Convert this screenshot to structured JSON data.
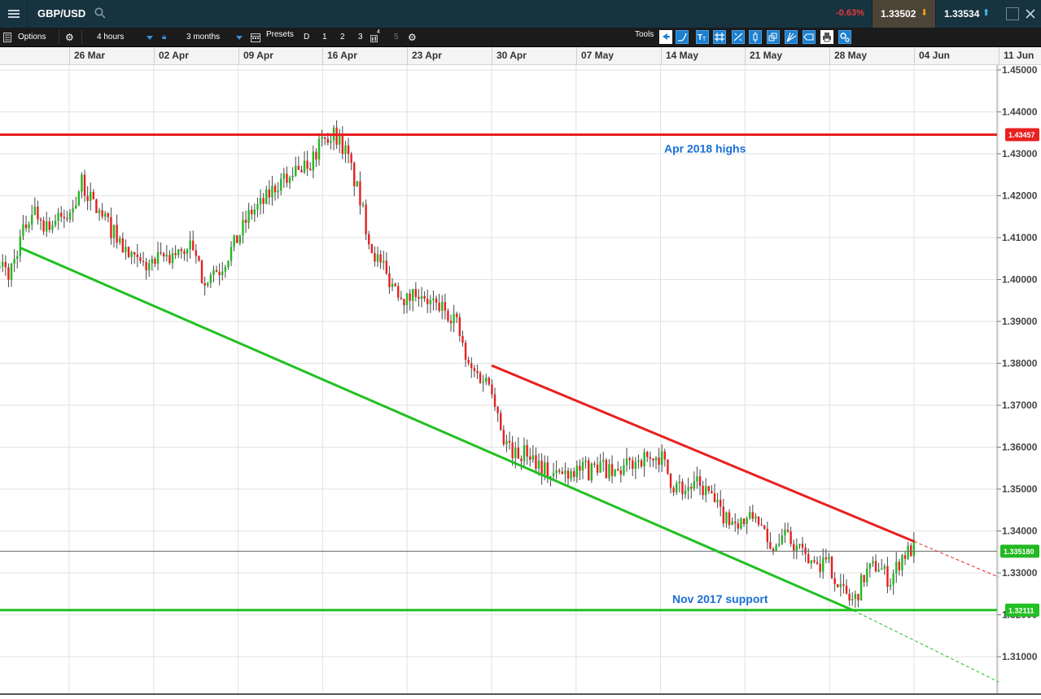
{
  "topbar": {
    "symbol": "GBP/USD",
    "change": "-0.63%",
    "sell_price": "1.33502",
    "buy_price": "1.33534",
    "icons": [
      "menu-icon",
      "search-icon",
      "down-arrow-icon",
      "up-arrow-icon",
      "maximize-icon",
      "close-icon"
    ]
  },
  "toolbar": {
    "options_label": "Options",
    "interval": "4 hours",
    "range": "3 months",
    "presets_label": "Presets",
    "preset_buttons": [
      "D",
      "1",
      "2",
      "3",
      "4",
      "5"
    ],
    "tools_label": "Tools",
    "icons": [
      "options-icon",
      "gear-icon",
      "lock-icon",
      "calendar-icon",
      "settings-icon",
      "cursor-icon",
      "line-tool-icon",
      "text-tool-icon",
      "grid-tool-icon",
      "fib-tool-icon",
      "candle-tool-icon",
      "layers-tool-icon",
      "fan-tool-icon",
      "shape-tool-icon",
      "print-icon",
      "settings-tool-icon"
    ]
  },
  "chart_data": {
    "type": "candlestick",
    "symbol": "GBP/USD",
    "interval": "4 hours",
    "x_labels": [
      "26 Mar",
      "02 Apr",
      "09 Apr",
      "16 Apr",
      "23 Apr",
      "30 Apr",
      "07 May",
      "14 May",
      "21 May",
      "28 May",
      "04 Jun",
      "11 Jun"
    ],
    "y_ticks": [
      "1.45000",
      "1.44000",
      "1.43000",
      "1.42000",
      "1.41000",
      "1.40000",
      "1.39000",
      "1.38000",
      "1.37000",
      "1.36000",
      "1.35000",
      "1.34000",
      "1.33000",
      "1.32000",
      "1.31000"
    ],
    "ylim": [
      1.3,
      1.45
    ],
    "current_price": 1.33518,
    "current_price_label": "1.335180",
    "horizontal_levels": [
      {
        "value": 1.43457,
        "label": "1.43457",
        "annotation": "Apr 2018 highs",
        "color": "#e82020"
      },
      {
        "value": 1.32111,
        "label": "1.32111",
        "annotation": "Nov 2017 support",
        "color": "#22c022"
      }
    ],
    "trendlines": [
      {
        "name": "resistance",
        "color": "#e82020",
        "points": [
          [
            "30 Apr",
            1.3795
          ],
          [
            "04 Jun",
            1.3375
          ]
        ],
        "extension": [
          "11 Jun",
          1.329
        ]
      },
      {
        "name": "support",
        "color": "#22c022",
        "points": [
          [
            "22 Mar",
            1.4075
          ],
          [
            "30 May",
            1.321
          ]
        ],
        "extension": [
          "11 Jun",
          1.304
        ]
      }
    ],
    "close_path": [
      [
        "20 Mar",
        1.405
      ],
      [
        "21 Mar",
        1.401
      ],
      [
        "22 Mar",
        1.41
      ],
      [
        "23 Mar",
        1.417
      ],
      [
        "24 Mar",
        1.413
      ],
      [
        "26 Mar",
        1.415
      ],
      [
        "27 Mar",
        1.423
      ],
      [
        "28 Mar",
        1.418
      ],
      [
        "29 Mar",
        1.414
      ],
      [
        "30 Mar",
        1.41
      ],
      [
        "31 Mar",
        1.405
      ],
      [
        "01 Apr",
        1.403
      ],
      [
        "02 Apr",
        1.404
      ],
      [
        "03 Apr",
        1.405
      ],
      [
        "04 Apr",
        1.406
      ],
      [
        "05 Apr",
        1.408
      ],
      [
        "06 Apr",
        1.401
      ],
      [
        "07 Apr",
        1.4
      ],
      [
        "09 Apr",
        1.41
      ],
      [
        "10 Apr",
        1.416
      ],
      [
        "11 Apr",
        1.418
      ],
      [
        "12 Apr",
        1.422
      ],
      [
        "13 Apr",
        1.424
      ],
      [
        "14 Apr",
        1.427
      ],
      [
        "15 Apr",
        1.428
      ],
      [
        "16 Apr",
        1.433
      ],
      [
        "17 Apr",
        1.435
      ],
      [
        "18 Apr",
        1.43
      ],
      [
        "19 Apr",
        1.42
      ],
      [
        "20 Apr",
        1.408
      ],
      [
        "21 Apr",
        1.402
      ],
      [
        "23 Apr",
        1.395
      ],
      [
        "24 Apr",
        1.398
      ],
      [
        "25 Apr",
        1.394
      ],
      [
        "26 Apr",
        1.393
      ],
      [
        "27 Apr",
        1.391
      ],
      [
        "28 Apr",
        1.379
      ],
      [
        "29 Apr",
        1.377
      ],
      [
        "30 Apr",
        1.375
      ],
      [
        "01 May",
        1.362
      ],
      [
        "02 May",
        1.358
      ],
      [
        "03 May",
        1.359
      ],
      [
        "04 May",
        1.356
      ],
      [
        "05 May",
        1.353
      ],
      [
        "07 May",
        1.355
      ],
      [
        "08 May",
        1.354
      ],
      [
        "09 May",
        1.356
      ],
      [
        "10 May",
        1.353
      ],
      [
        "11 May",
        1.355
      ],
      [
        "12 May",
        1.357
      ],
      [
        "14 May",
        1.358
      ],
      [
        "15 May",
        1.351
      ],
      [
        "16 May",
        1.35
      ],
      [
        "17 May",
        1.351
      ],
      [
        "18 May",
        1.349
      ],
      [
        "19 May",
        1.344
      ],
      [
        "21 May",
        1.342
      ],
      [
        "22 May",
        1.344
      ],
      [
        "23 May",
        1.335
      ],
      [
        "24 May",
        1.339
      ],
      [
        "25 May",
        1.337
      ],
      [
        "26 May",
        1.333
      ],
      [
        "28 May",
        1.332
      ],
      [
        "29 May",
        1.326
      ],
      [
        "30 May",
        1.323
      ],
      [
        "31 May",
        1.33
      ],
      [
        "01 Jun",
        1.332
      ],
      [
        "02 Jun",
        1.328
      ],
      [
        "03 Jun",
        1.334
      ],
      [
        "04 Jun",
        1.336
      ]
    ]
  }
}
